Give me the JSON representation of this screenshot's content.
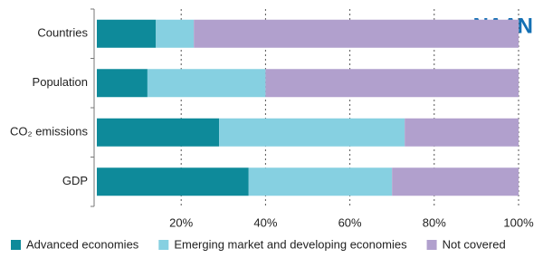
{
  "logo": "NAAN",
  "chart_data": {
    "type": "stacked_bar_horizontal",
    "categories": [
      "Countries",
      "Population",
      "CO₂ emissions",
      "GDP"
    ],
    "series": [
      {
        "name": "Advanced economies",
        "color": "#0e8a9a",
        "values": [
          14,
          12,
          29,
          36
        ]
      },
      {
        "name": "Emerging market and developing economies",
        "color": "#86d0e1",
        "values": [
          9,
          28,
          44,
          34
        ]
      },
      {
        "name": "Not covered",
        "color": "#b1a0cd",
        "values": [
          77,
          60,
          27,
          30
        ]
      }
    ],
    "xlim": [
      0,
      100
    ],
    "xticks": [
      {
        "value": 20,
        "label": "20%"
      },
      {
        "value": 40,
        "label": "40%"
      },
      {
        "value": 60,
        "label": "60%"
      },
      {
        "value": 80,
        "label": "80%"
      },
      {
        "value": 100,
        "label": "100%"
      }
    ],
    "grid": true,
    "legend": "bottom"
  }
}
